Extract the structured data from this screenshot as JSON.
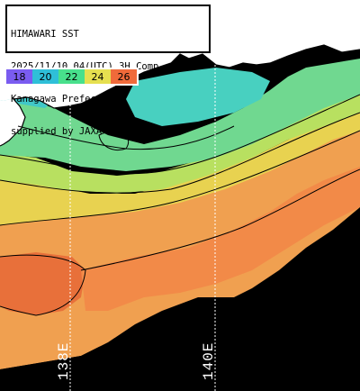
{
  "header": {
    "lines": [
      "HIMAWARI SST",
      "2025/11/10 04(UTC) 3H Comp.",
      "Kanagawa Prefecture",
      "supplied by JAXA"
    ]
  },
  "legend": {
    "items": [
      {
        "label": "18",
        "color": "#7a5cf0"
      },
      {
        "label": "20",
        "color": "#2fbfd8"
      },
      {
        "label": "22",
        "color": "#48e08c"
      },
      {
        "label": "24",
        "color": "#e6e050"
      },
      {
        "label": "26",
        "color": "#f06a3a"
      }
    ]
  },
  "longitudes": [
    {
      "label": "138E",
      "lon": 138
    },
    {
      "label": "140E",
      "lon": 140
    }
  ],
  "colors": {
    "land": "#ffffff",
    "no_data": "#000000",
    "grid": "#ffffff"
  }
}
